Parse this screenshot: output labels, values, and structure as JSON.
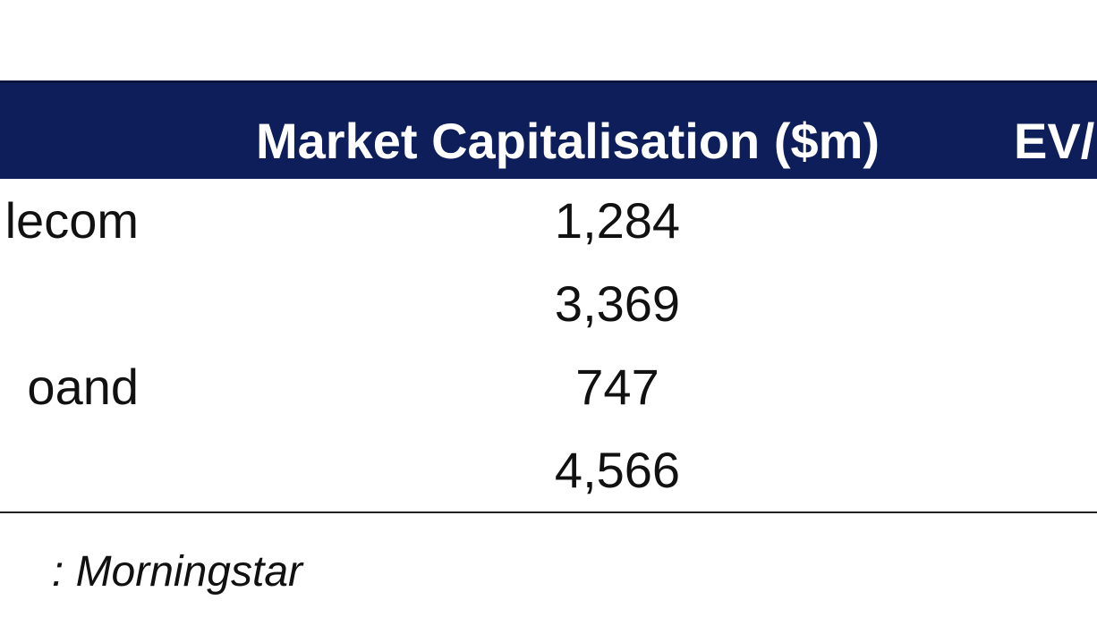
{
  "table": {
    "headers": {
      "company": "",
      "market_cap": "Market Capitalisation ($m)",
      "ev": "EV/"
    },
    "rows": [
      {
        "company": "lecom",
        "market_cap": "1,284"
      },
      {
        "company": "",
        "market_cap": "3,369"
      },
      {
        "company": "oand",
        "market_cap": "747"
      },
      {
        "company": "",
        "market_cap": "4,566"
      }
    ]
  },
  "source": {
    "text": ": Morningstar"
  },
  "colors": {
    "header_background": "#0e1e5b",
    "header_text": "#ffffff",
    "body_text": "#111111"
  }
}
